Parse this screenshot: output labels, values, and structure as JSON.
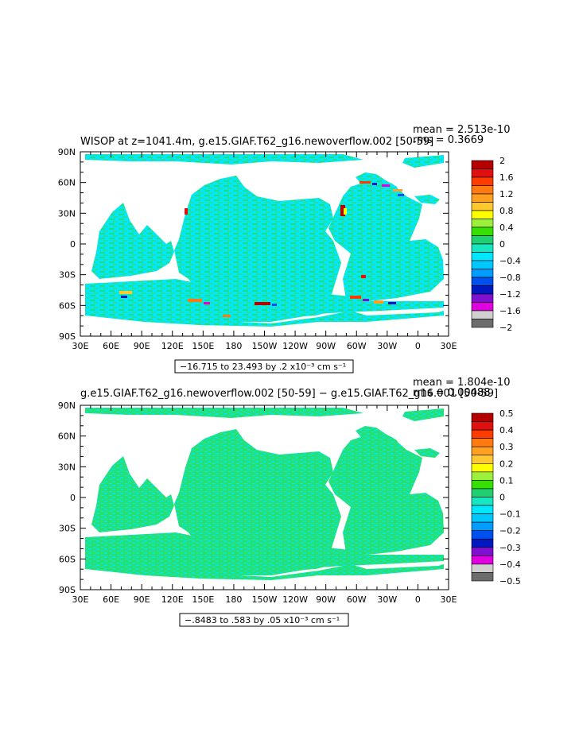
{
  "chart_data": [
    {
      "type": "heatmap",
      "title": "WISOP at z=1041.4m, g.e15.GIAF.T62_g16.newoverflow.002 [50-59]",
      "stats": {
        "mean": "mean = 2.513e-10",
        "rms": "rms = 0.3669"
      },
      "range_label": "−16.715 to 23.493 by .2 x10⁻³ cm s⁻¹",
      "x_ticks": [
        "30E",
        "60E",
        "90E",
        "120E",
        "150E",
        "180",
        "150W",
        "120W",
        "90W",
        "60W",
        "30W",
        "0",
        "30E"
      ],
      "y_ticks": [
        "90N",
        "60N",
        "30N",
        "0",
        "30S",
        "60S",
        "90S"
      ],
      "colorbar": {
        "labels": [
          "2",
          "1.6",
          "1.2",
          "0.8",
          "0.4",
          "0",
          "−0.4",
          "−0.8",
          "−1.2",
          "−1.6",
          "−2"
        ],
        "colors": [
          "#b40000",
          "#e01010",
          "#ff3b00",
          "#ff7a10",
          "#ffa020",
          "#ffc830",
          "#ffff00",
          "#9cf03c",
          "#36e000",
          "#20d070",
          "#18e6c0",
          "#00e8ff",
          "#00c8ff",
          "#009cff",
          "#0050f0",
          "#0018c0",
          "#8010d0",
          "#e000e0",
          "#d0d0d0",
          "#6c6c6c"
        ]
      }
    },
    {
      "type": "heatmap",
      "title": "g.e15.GIAF.T62_g16.newoverflow.002 [50-59] − g.e15.GIAF.T62_g16.001 [50-59]",
      "stats": {
        "mean": "mean = 1.804e-10",
        "rms": "rms = 0.00488"
      },
      "range_label": "−.8483 to .583 by .05 x10⁻³ cm s⁻¹",
      "x_ticks": [
        "30E",
        "60E",
        "90E",
        "120E",
        "150E",
        "180",
        "150W",
        "120W",
        "90W",
        "60W",
        "30W",
        "0",
        "30E"
      ],
      "y_ticks": [
        "90N",
        "60N",
        "30N",
        "0",
        "30S",
        "60S",
        "90S"
      ],
      "colorbar": {
        "labels": [
          "0.5",
          "0.4",
          "0.3",
          "0.2",
          "0.1",
          "0",
          "−0.1",
          "−0.2",
          "−0.3",
          "−0.4",
          "−0.5"
        ],
        "colors": [
          "#b40000",
          "#e01010",
          "#ff3b00",
          "#ff7a10",
          "#ffa020",
          "#ffc830",
          "#ffff00",
          "#9cf03c",
          "#36e000",
          "#20d070",
          "#18e6c0",
          "#00e8ff",
          "#00c8ff",
          "#009cff",
          "#0050f0",
          "#0018c0",
          "#8010d0",
          "#e000e0",
          "#d0d0d0",
          "#6c6c6c"
        ]
      }
    }
  ],
  "colors": {
    "ocean_main": "#1fe0a8",
    "ocean_cyan": "#00e8ff",
    "ocean_green": "#28e060",
    "land": "#ffffff"
  }
}
